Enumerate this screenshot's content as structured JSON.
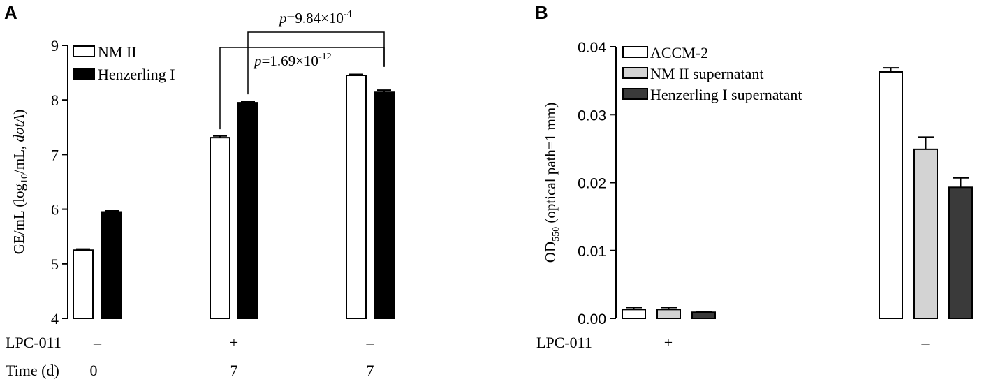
{
  "chart_data": [
    {
      "panel": "A",
      "type": "bar",
      "ylabel_parts": [
        "GE/mL (log",
        "10",
        "/mL, ",
        "dotA",
        ")"
      ],
      "ylim": [
        4,
        9
      ],
      "yticks": [
        "4",
        "5",
        "6",
        "7",
        "8",
        "9"
      ],
      "categories": [
        "0",
        "7",
        "7"
      ],
      "factor_rows": [
        {
          "label": "LPC-011",
          "values": [
            "–",
            "+",
            "–"
          ]
        },
        {
          "label": "Time (d)",
          "values": [
            "0",
            "7",
            "7"
          ]
        }
      ],
      "series": [
        {
          "name": "NM II",
          "color": "#ffffff",
          "values": [
            5.25,
            7.31,
            8.45
          ],
          "errors": [
            0.02,
            0.03,
            0.02
          ]
        },
        {
          "name": "Henzerling I",
          "color": "#000000",
          "values": [
            5.95,
            7.95,
            8.14
          ],
          "errors": [
            0.02,
            0.02,
            0.04
          ]
        }
      ],
      "annotations": [
        {
          "p": "p",
          "text": "=1.69×10",
          "exp": "-12"
        },
        {
          "p": "p",
          "text": "=9.84×10",
          "exp": "-4"
        }
      ],
      "legend": "top-left",
      "grid": false
    },
    {
      "panel": "B",
      "type": "bar",
      "ylabel_parts": [
        "OD",
        "550",
        " (optical path=1 mm)"
      ],
      "ylim": [
        0,
        0.04
      ],
      "yticks": [
        "0.00",
        "0.01",
        "0.02",
        "0.03",
        "0.04"
      ],
      "factor_rows": [
        {
          "label": "LPC-011",
          "values": [
            "+",
            "–"
          ]
        }
      ],
      "series": [
        {
          "name": "ACCM-2",
          "color": "#ffffff",
          "values": [
            0.0013,
            0.0363
          ],
          "errors": [
            0.0003,
            0.0006
          ]
        },
        {
          "name": "NM II supernatant",
          "color": "#d3d3d3",
          "values": [
            0.0013,
            0.0249
          ],
          "errors": [
            0.0003,
            0.0018
          ]
        },
        {
          "name": "Henzerling I supernatant",
          "color": "#3a3a3a",
          "values": [
            0.0009,
            0.0193
          ],
          "errors": [
            0.0001,
            0.0014
          ]
        }
      ],
      "legend": "top-left",
      "grid": false
    }
  ],
  "panel_labels": [
    "A",
    "B"
  ]
}
